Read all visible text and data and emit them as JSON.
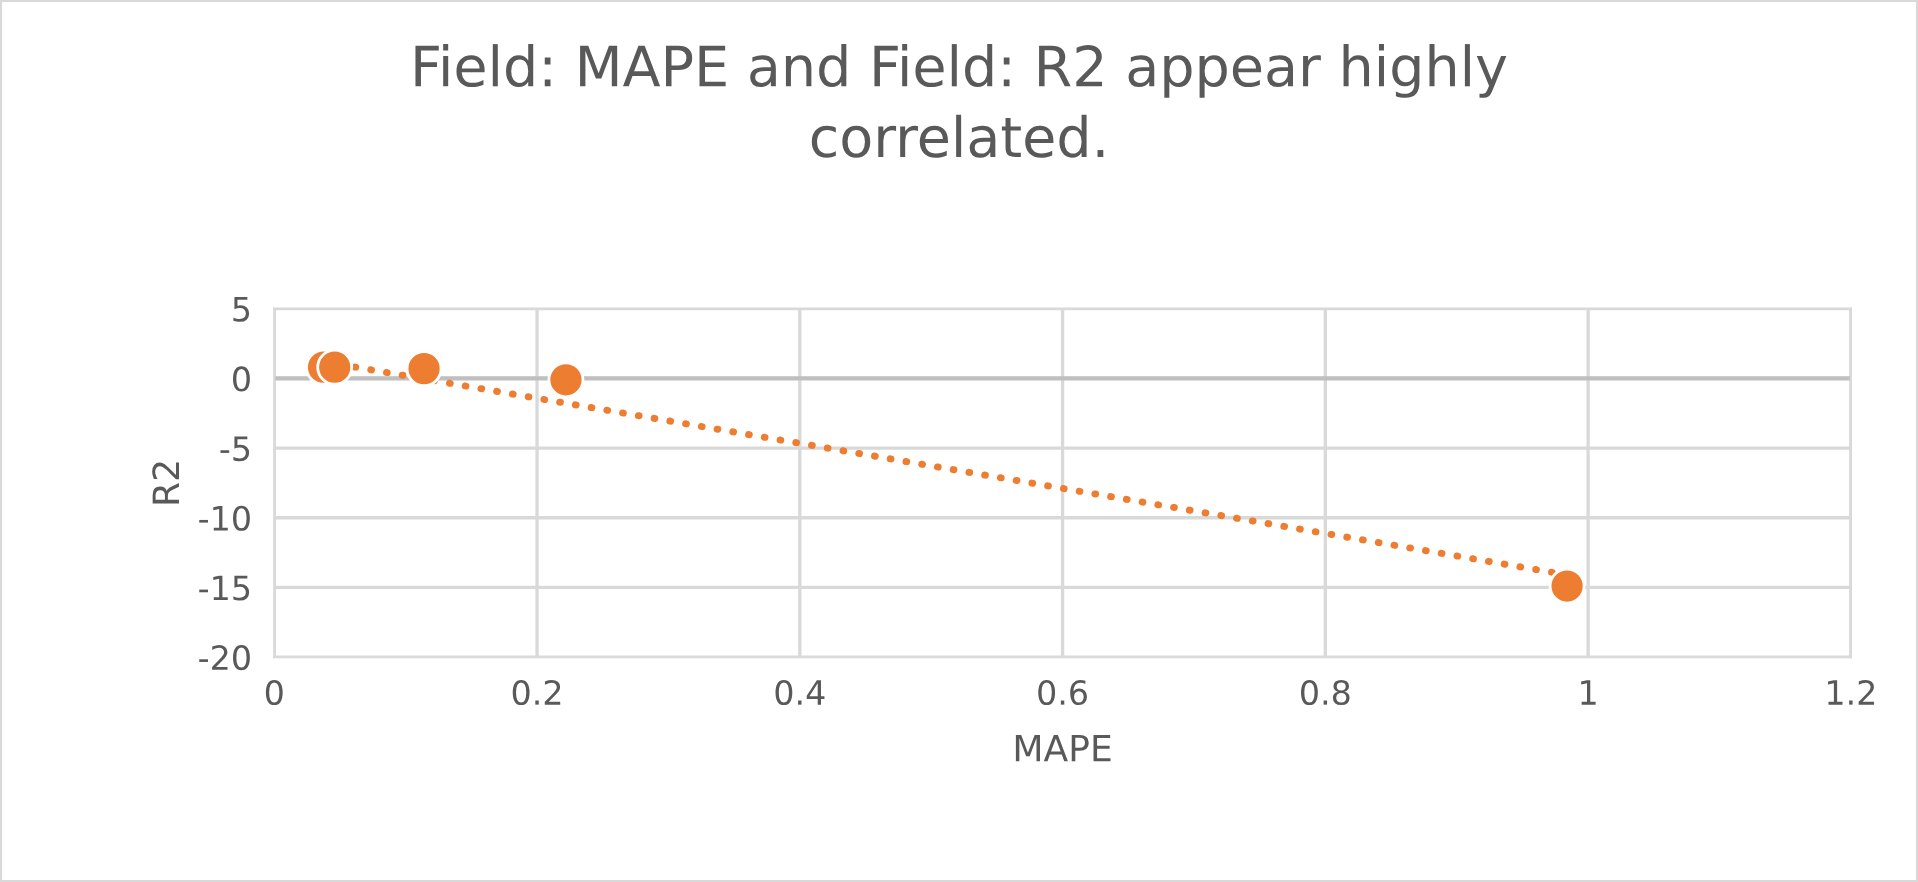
{
  "chart_data": {
    "type": "scatter",
    "title": "Field: MAPE and Field: R2 appear highly\ncorrelated.",
    "xlabel": "MAPE",
    "ylabel": "R2",
    "x": [
      0.0375,
      0.046,
      0.114,
      0.222,
      0.984
    ],
    "series": [
      {
        "color": "#ed7d31",
        "values": [
          0.8,
          0.8,
          0.7,
          -0.1,
          -14.9
        ],
        "marker": "circle"
      },
      {
        "type": "line",
        "color": "#ed7d31",
        "x": [
          0.0375,
          0.984
        ],
        "values": [
          1.2,
          -14.1
        ],
        "line_style": "dotted",
        "marker": "none"
      }
    ],
    "xlim": [
      0,
      1.2
    ],
    "xticks": [
      0,
      0.2,
      0.4,
      0.6,
      0.8,
      1,
      1.2
    ],
    "ylim": [
      -20,
      5
    ],
    "yticks": [
      5,
      0,
      -5,
      -10,
      -15,
      -20
    ],
    "grid": true,
    "legend": false
  }
}
